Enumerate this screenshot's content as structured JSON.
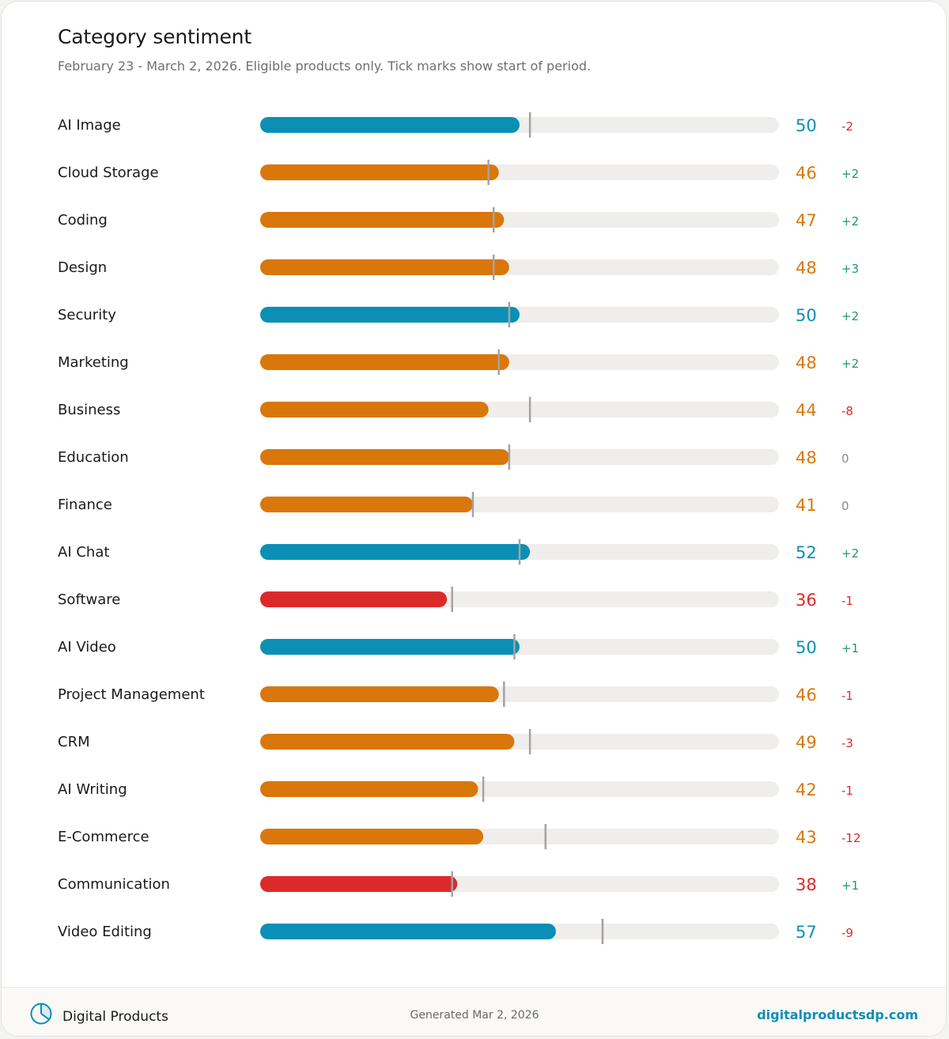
{
  "header": {
    "title": "Category sentiment",
    "subtitle": "February 23 - March 2, 2026. Eligible products only. Tick marks show start of period."
  },
  "colors": {
    "blue": "#0b8fb5",
    "orange": "#d9770b",
    "red": "#dc2a2a",
    "green": "#1d9a63",
    "neutral": "#8a8a8a",
    "track": "#efeeec",
    "tick": "#a3a3a3"
  },
  "chart_data": {
    "type": "bar",
    "orientation": "horizontal",
    "xlim": [
      0,
      100
    ],
    "grid": false,
    "legend": "none",
    "categories": [
      "AI Image",
      "Cloud Storage",
      "Coding",
      "Design",
      "Security",
      "Marketing",
      "Business",
      "Education",
      "Finance",
      "AI Chat",
      "Software",
      "AI Video",
      "Project Management",
      "CRM",
      "AI Writing",
      "E-Commerce",
      "Communication",
      "Video Editing"
    ],
    "values": [
      50,
      46,
      47,
      48,
      50,
      48,
      44,
      48,
      41,
      52,
      36,
      50,
      46,
      49,
      42,
      43,
      38,
      57
    ],
    "start_of_period": [
      52,
      44,
      45,
      45,
      48,
      46,
      52,
      48,
      41,
      50,
      37,
      49,
      47,
      52,
      43,
      55,
      37,
      66
    ],
    "change_labels": [
      "-2",
      "+2",
      "+2",
      "+3",
      "+2",
      "+2",
      "-8",
      "0",
      "0",
      "+2",
      "-1",
      "+1",
      "-1",
      "-3",
      "-1",
      "-12",
      "+1",
      "-9"
    ],
    "bar_colors": [
      "blue",
      "orange",
      "orange",
      "orange",
      "blue",
      "orange",
      "orange",
      "orange",
      "orange",
      "blue",
      "red",
      "blue",
      "orange",
      "orange",
      "orange",
      "orange",
      "red",
      "blue"
    ]
  },
  "footer": {
    "brand": "Digital Products",
    "brand_icon": "pie-chart-icon",
    "generated": "Generated Mar 2, 2026",
    "site": "digitalproductsdp.com"
  }
}
